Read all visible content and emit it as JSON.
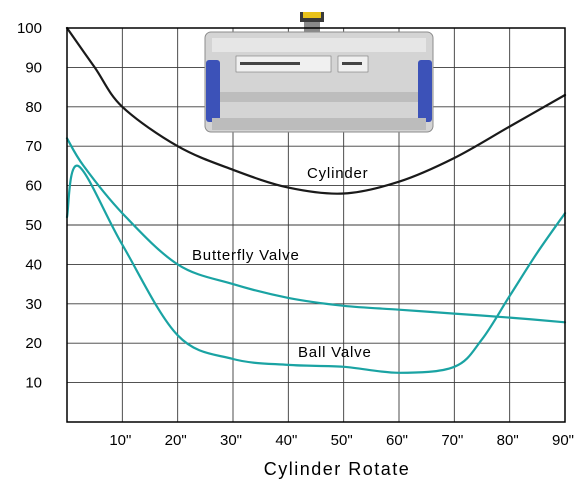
{
  "chart_data": {
    "type": "line",
    "title": "",
    "xlabel": "Cylinder Rotate",
    "ylabel": "",
    "xlim": [
      0,
      90
    ],
    "ylim": [
      0,
      100
    ],
    "grid": true,
    "x_tick_labels": [
      "10\"",
      "20\"",
      "30\"",
      "40\"",
      "50\"",
      "60\"",
      "70\"",
      "80\"",
      "90\""
    ],
    "y_tick_labels": [
      "10",
      "20",
      "30",
      "40",
      "50",
      "60",
      "70",
      "80",
      "90",
      "100"
    ],
    "series": [
      {
        "name": "Cylinder",
        "color": "#1a1a1a",
        "x": [
          0,
          5,
          10,
          20,
          30,
          40,
          50,
          60,
          70,
          80,
          90
        ],
        "y": [
          100,
          90,
          80,
          70,
          64,
          59.5,
          58,
          61,
          67,
          75,
          83
        ]
      },
      {
        "name": "Butterfly Valve",
        "color": "#1aa3a3",
        "x": [
          0,
          3,
          10,
          20,
          30,
          40,
          50,
          60,
          70,
          80,
          90
        ],
        "y": [
          72,
          65,
          53,
          40,
          35,
          31.5,
          29.5,
          28.5,
          27.5,
          26.5,
          25.3
        ]
      },
      {
        "name": "Ball Valve",
        "color": "#1aa3a3",
        "x": [
          0,
          2,
          10,
          20,
          30,
          40,
          50,
          60,
          70,
          75,
          80,
          85,
          90
        ],
        "y": [
          52,
          65,
          45,
          22,
          16,
          14.5,
          14,
          12.5,
          14,
          21,
          32,
          43,
          53
        ]
      }
    ],
    "annotations": [
      "Cylinder",
      "Butterfly Valve",
      "Ball Valve"
    ]
  },
  "icons": [
    "actuator-photo"
  ]
}
